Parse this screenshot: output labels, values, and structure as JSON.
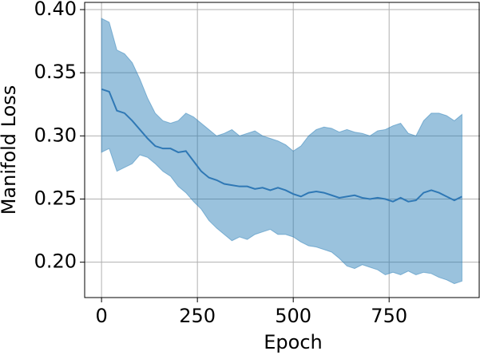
{
  "chart_data": {
    "type": "line",
    "xlabel": "Epoch",
    "ylabel": "Manifold Loss",
    "x": [
      0,
      20,
      40,
      60,
      80,
      100,
      120,
      140,
      160,
      180,
      200,
      220,
      240,
      260,
      280,
      300,
      320,
      340,
      360,
      380,
      400,
      420,
      440,
      460,
      480,
      500,
      520,
      540,
      560,
      580,
      600,
      620,
      640,
      660,
      680,
      700,
      720,
      740,
      760,
      780,
      800,
      820,
      840,
      860,
      880,
      900,
      920,
      940
    ],
    "values": [
      0.337,
      0.335,
      0.32,
      0.318,
      0.312,
      0.305,
      0.298,
      0.292,
      0.29,
      0.29,
      0.287,
      0.288,
      0.28,
      0.272,
      0.267,
      0.265,
      0.262,
      0.261,
      0.26,
      0.26,
      0.258,
      0.259,
      0.257,
      0.259,
      0.257,
      0.254,
      0.252,
      0.255,
      0.256,
      0.255,
      0.253,
      0.251,
      0.252,
      0.253,
      0.251,
      0.25,
      0.251,
      0.25,
      0.248,
      0.251,
      0.248,
      0.249,
      0.255,
      0.257,
      0.255,
      0.252,
      0.249,
      0.252
    ],
    "color": "#2f78b5",
    "band": {
      "color": "#1f77b4",
      "opacity": 0.45,
      "upper": [
        0.393,
        0.39,
        0.368,
        0.365,
        0.358,
        0.345,
        0.33,
        0.318,
        0.312,
        0.31,
        0.312,
        0.318,
        0.315,
        0.31,
        0.305,
        0.3,
        0.302,
        0.305,
        0.3,
        0.302,
        0.304,
        0.3,
        0.298,
        0.296,
        0.293,
        0.288,
        0.292,
        0.3,
        0.305,
        0.307,
        0.306,
        0.303,
        0.305,
        0.303,
        0.302,
        0.3,
        0.304,
        0.305,
        0.308,
        0.31,
        0.302,
        0.3,
        0.312,
        0.318,
        0.318,
        0.316,
        0.312,
        0.317
      ],
      "lower": [
        0.287,
        0.29,
        0.272,
        0.275,
        0.278,
        0.285,
        0.283,
        0.278,
        0.272,
        0.268,
        0.26,
        0.255,
        0.248,
        0.242,
        0.233,
        0.227,
        0.222,
        0.217,
        0.22,
        0.218,
        0.222,
        0.224,
        0.226,
        0.222,
        0.222,
        0.22,
        0.216,
        0.213,
        0.212,
        0.21,
        0.208,
        0.203,
        0.197,
        0.195,
        0.198,
        0.196,
        0.194,
        0.19,
        0.192,
        0.19,
        0.193,
        0.19,
        0.192,
        0.191,
        0.188,
        0.186,
        0.183,
        0.185
      ]
    },
    "xlim": [
      -44,
      987
    ],
    "ylim": [
      0.172,
      0.4057
    ],
    "xticks": [
      0,
      250,
      500,
      750
    ],
    "yticks": [
      {
        "value": 0.2,
        "label": "0.20"
      },
      {
        "value": 0.25,
        "label": "0.25"
      },
      {
        "value": 0.3,
        "label": "0.30"
      },
      {
        "value": 0.35,
        "label": "0.35"
      },
      {
        "value": 0.4,
        "label": "0.40"
      }
    ],
    "grid": true
  }
}
